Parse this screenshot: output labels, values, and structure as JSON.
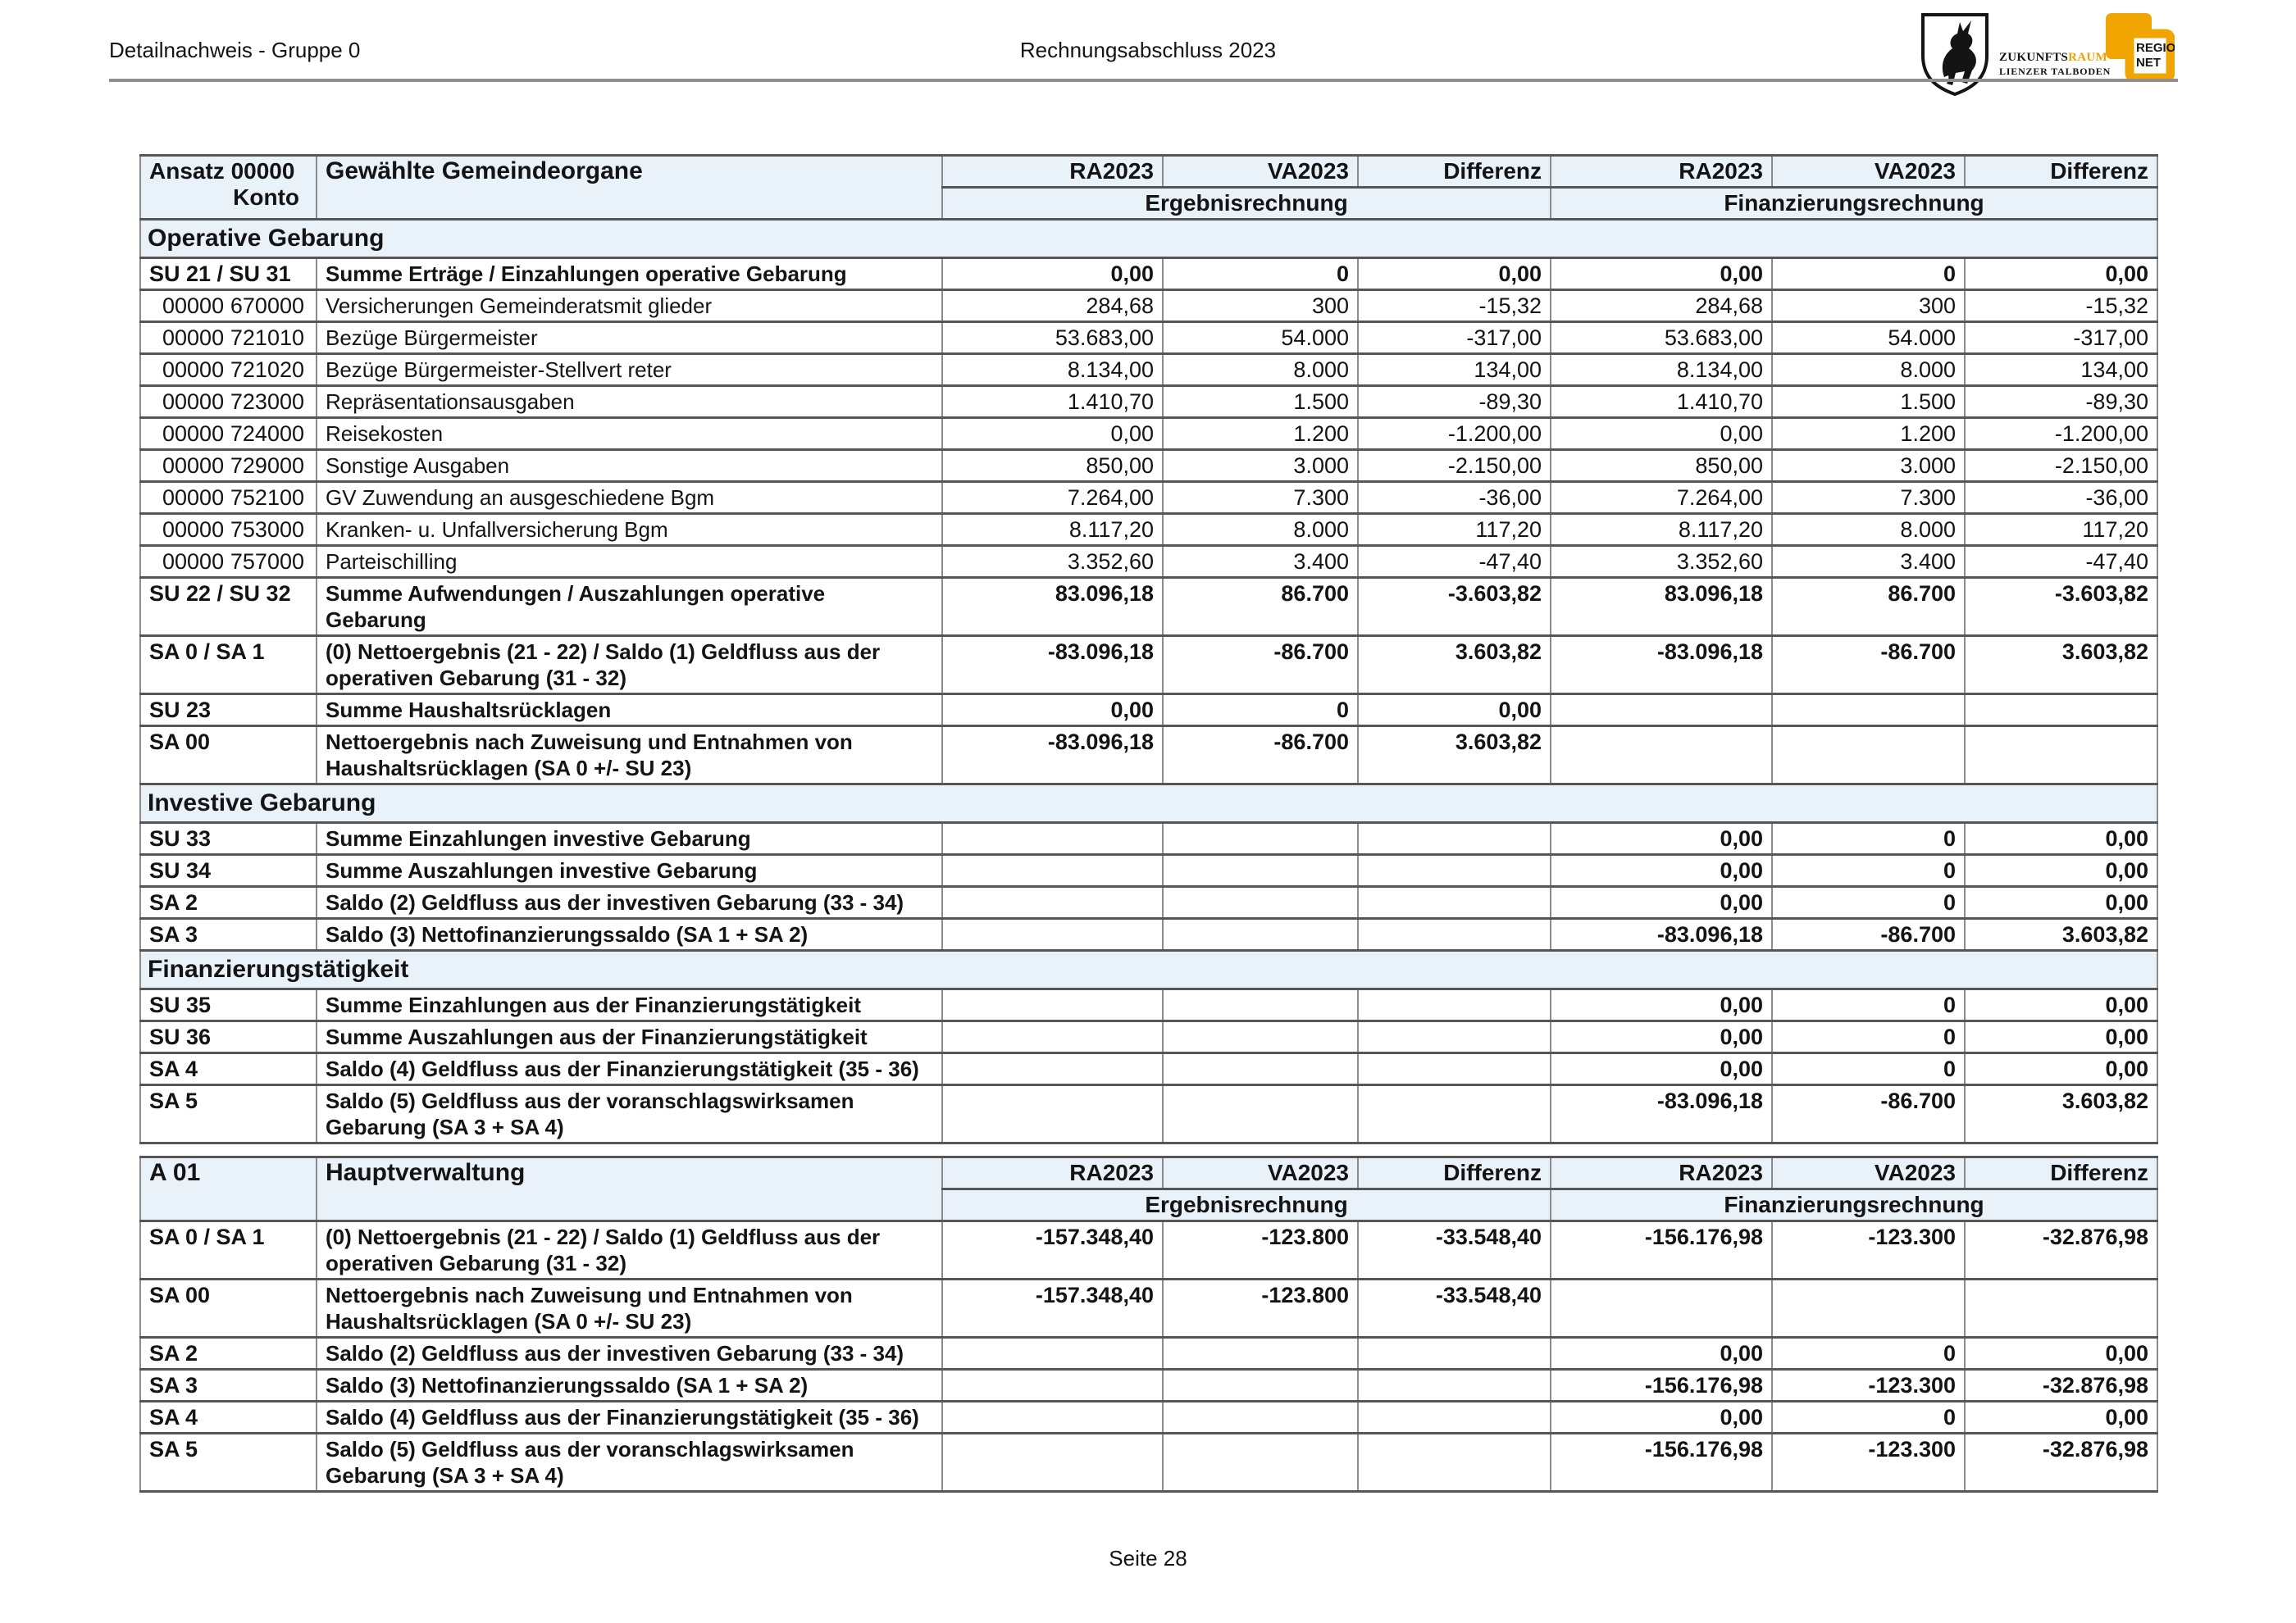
{
  "page": {
    "header_left": "Detailnachweis - Gruppe 0",
    "header_center": "Rechnungsabschluss 2023",
    "footer": "Seite 28"
  },
  "logo": {
    "zr_black": "ZUKUNFTS",
    "zr_orange": "RAUM",
    "zr_reg": "®",
    "zr_line2": "LIENZER TALBODEN",
    "rn_line1": "REGIO",
    "rn_line2": "NET",
    "accent_yellow": "#F0A500"
  },
  "colors": {
    "header_bg": "#e9f1f9",
    "grid_dark": "#565656",
    "grid_light": "#8c8c8c",
    "rule_gray": "#8f8f8f"
  },
  "header_shared": {
    "cols": [
      "RA2023",
      "VA2023",
      "Differenz",
      "RA2023",
      "VA2023",
      "Differenz"
    ],
    "group_left": "Ergebnisrechnung",
    "group_right": "Finanzierungsrechnung"
  },
  "block1": {
    "ansatz_label": "Ansatz 00000",
    "konto_label": "Konto",
    "title": "Gewählte Gemeindeorgane",
    "rows": [
      {
        "type": "section",
        "title": "Operative Gebarung"
      },
      {
        "c1": "SU 21 / SU 31",
        "c2": "",
        "label": "Summe Erträge / Einzahlungen operative Gebarung",
        "bold": true,
        "v": [
          "0,00",
          "0",
          "0,00",
          "0,00",
          "0",
          "0,00"
        ]
      },
      {
        "c1": "00000",
        "c2": "670000",
        "label": "Versicherungen Gemeinderatsmit glieder",
        "v": [
          "284,68",
          "300",
          "-15,32",
          "284,68",
          "300",
          "-15,32"
        ]
      },
      {
        "c1": "00000",
        "c2": "721010",
        "label": "Bezüge Bürgermeister",
        "v": [
          "53.683,00",
          "54.000",
          "-317,00",
          "53.683,00",
          "54.000",
          "-317,00"
        ]
      },
      {
        "c1": "00000",
        "c2": "721020",
        "label": "Bezüge Bürgermeister-Stellvert reter",
        "v": [
          "8.134,00",
          "8.000",
          "134,00",
          "8.134,00",
          "8.000",
          "134,00"
        ]
      },
      {
        "c1": "00000",
        "c2": "723000",
        "label": "Repräsentationsausgaben",
        "v": [
          "1.410,70",
          "1.500",
          "-89,30",
          "1.410,70",
          "1.500",
          "-89,30"
        ]
      },
      {
        "c1": "00000",
        "c2": "724000",
        "label": "Reisekosten",
        "v": [
          "0,00",
          "1.200",
          "-1.200,00",
          "0,00",
          "1.200",
          "-1.200,00"
        ]
      },
      {
        "c1": "00000",
        "c2": "729000",
        "label": "Sonstige Ausgaben",
        "v": [
          "850,00",
          "3.000",
          "-2.150,00",
          "850,00",
          "3.000",
          "-2.150,00"
        ]
      },
      {
        "c1": "00000",
        "c2": "752100",
        "label": "GV Zuwendung an ausgeschiedene Bgm",
        "v": [
          "7.264,00",
          "7.300",
          "-36,00",
          "7.264,00",
          "7.300",
          "-36,00"
        ]
      },
      {
        "c1": "00000",
        "c2": "753000",
        "label": "Kranken- u. Unfallversicherung Bgm",
        "v": [
          "8.117,20",
          "8.000",
          "117,20",
          "8.117,20",
          "8.000",
          "117,20"
        ]
      },
      {
        "c1": "00000",
        "c2": "757000",
        "label": "Parteischilling",
        "v": [
          "3.352,60",
          "3.400",
          "-47,40",
          "3.352,60",
          "3.400",
          "-47,40"
        ]
      },
      {
        "c1": "SU 22 / SU 32",
        "label": "Summe Aufwendungen / Auszahlungen operative",
        "label2": "Gebarung",
        "bold": true,
        "v": [
          "83.096,18",
          "86.700",
          "-3.603,82",
          "83.096,18",
          "86.700",
          "-3.603,82"
        ]
      },
      {
        "c1": "SA 0 / SA 1",
        "label": "(0) Nettoergebnis (21 - 22) / Saldo (1) Geldfluss aus der",
        "label2": "operativen Gebarung (31 - 32)",
        "bold": true,
        "v": [
          "-83.096,18",
          "-86.700",
          "3.603,82",
          "-83.096,18",
          "-86.700",
          "3.603,82"
        ]
      },
      {
        "c1": "SU 23",
        "label": "Summe Haushaltsrücklagen",
        "bold": true,
        "v": [
          "0,00",
          "0",
          "0,00",
          "",
          "",
          ""
        ]
      },
      {
        "c1": "SA 00",
        "label": "Nettoergebnis nach Zuweisung und Entnahmen von",
        "label2": "Haushaltsrücklagen (SA 0 +/- SU 23)",
        "bold": true,
        "v": [
          "-83.096,18",
          "-86.700",
          "3.603,82",
          "",
          "",
          ""
        ]
      },
      {
        "type": "section",
        "title": "Investive Gebarung"
      },
      {
        "c1": "SU 33",
        "label": "Summe Einzahlungen investive Gebarung",
        "bold": true,
        "v": [
          "",
          "",
          "",
          "0,00",
          "0",
          "0,00"
        ]
      },
      {
        "c1": "SU 34",
        "label": "Summe Auszahlungen investive Gebarung",
        "bold": true,
        "v": [
          "",
          "",
          "",
          "0,00",
          "0",
          "0,00"
        ]
      },
      {
        "c1": "SA 2",
        "label": "Saldo (2) Geldfluss aus der investiven Gebarung (33 - 34)",
        "bold": true,
        "v": [
          "",
          "",
          "",
          "0,00",
          "0",
          "0,00"
        ]
      },
      {
        "c1": "SA 3",
        "label": "Saldo (3) Nettofinanzierungssaldo (SA 1 + SA 2)",
        "bold": true,
        "v": [
          "",
          "",
          "",
          "-83.096,18",
          "-86.700",
          "3.603,82"
        ]
      },
      {
        "type": "section",
        "title": "Finanzierungstätigkeit"
      },
      {
        "c1": "SU 35",
        "label": "Summe Einzahlungen aus der Finanzierungstätigkeit",
        "bold": true,
        "v": [
          "",
          "",
          "",
          "0,00",
          "0",
          "0,00"
        ]
      },
      {
        "c1": "SU 36",
        "label": "Summe Auszahlungen aus der Finanzierungstätigkeit",
        "bold": true,
        "v": [
          "",
          "",
          "",
          "0,00",
          "0",
          "0,00"
        ]
      },
      {
        "c1": "SA 4",
        "label": "Saldo (4) Geldfluss aus der Finanzierungstätigkeit (35 - 36)",
        "bold": true,
        "v": [
          "",
          "",
          "",
          "0,00",
          "0",
          "0,00"
        ]
      },
      {
        "c1": "SA 5",
        "label": "Saldo (5) Geldfluss aus der voranschlagswirksamen",
        "label2": "Gebarung (SA 3 + SA 4)",
        "bold": true,
        "v": [
          "",
          "",
          "",
          "-83.096,18",
          "-86.700",
          "3.603,82"
        ]
      }
    ]
  },
  "block2": {
    "code": "A 01",
    "title": "Hauptverwaltung",
    "rows": [
      {
        "c1": "SA 0 / SA 1",
        "label": "(0) Nettoergebnis (21 - 22) / Saldo (1) Geldfluss aus der",
        "label2": "operativen Gebarung (31 - 32)",
        "bold": true,
        "v": [
          "-157.348,40",
          "-123.800",
          "-33.548,40",
          "-156.176,98",
          "-123.300",
          "-32.876,98"
        ]
      },
      {
        "c1": "SA 00",
        "label": "Nettoergebnis nach Zuweisung und Entnahmen von",
        "label2": "Haushaltsrücklagen (SA 0 +/- SU 23)",
        "bold": true,
        "v": [
          "-157.348,40",
          "-123.800",
          "-33.548,40",
          "",
          "",
          ""
        ]
      },
      {
        "c1": "SA 2",
        "label": "Saldo (2) Geldfluss aus der investiven Gebarung (33 - 34)",
        "bold": true,
        "v": [
          "",
          "",
          "",
          "0,00",
          "0",
          "0,00"
        ]
      },
      {
        "c1": "SA 3",
        "label": "Saldo (3) Nettofinanzierungssaldo (SA 1 + SA 2)",
        "bold": true,
        "v": [
          "",
          "",
          "",
          "-156.176,98",
          "-123.300",
          "-32.876,98"
        ]
      },
      {
        "c1": "SA 4",
        "label": "Saldo (4) Geldfluss aus der Finanzierungstätigkeit (35 - 36)",
        "bold": true,
        "v": [
          "",
          "",
          "",
          "0,00",
          "0",
          "0,00"
        ]
      },
      {
        "c1": "SA 5",
        "label": "Saldo (5) Geldfluss aus der voranschlagswirksamen",
        "label2": "Gebarung (SA 3 + SA 4)",
        "bold": true,
        "v": [
          "",
          "",
          "",
          "-156.176,98",
          "-123.300",
          "-32.876,98"
        ]
      }
    ]
  }
}
